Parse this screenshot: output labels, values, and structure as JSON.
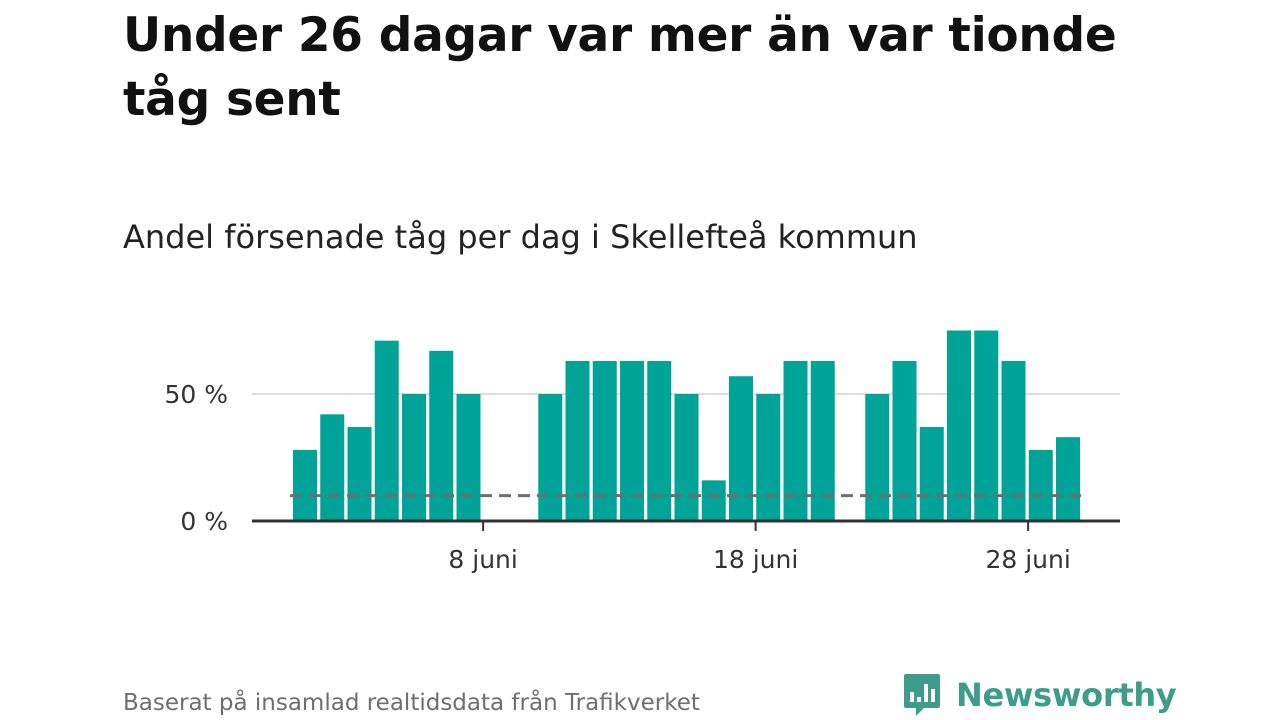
{
  "headline": "Under 26 dagar var mer än var tionde tåg sent",
  "subtitle": "Andel försenade tåg per dag i Skellefteå kommun",
  "footer": {
    "source": "Baserat på insamlad realtidsdata från Trafikverket",
    "brand": "Newsworthy"
  },
  "colors": {
    "bar": "#00a398",
    "reference_line": "#6e6e6e",
    "gridline": "#dddddd",
    "axis": "#333333",
    "brand": "#3d9c8a"
  },
  "chart_data": {
    "type": "bar",
    "title": "Andel försenade tåg per dag i Skellefteå kommun",
    "xlabel": "",
    "ylabel": "",
    "x_unit": "day of June",
    "x": [
      1,
      2,
      3,
      4,
      5,
      6,
      7,
      8,
      9,
      10,
      11,
      12,
      13,
      14,
      15,
      16,
      17,
      18,
      19,
      20,
      21,
      22,
      23,
      24,
      25,
      26,
      27,
      28,
      29,
      30
    ],
    "values": [
      28,
      42,
      37,
      71,
      50,
      67,
      50,
      null,
      null,
      50,
      63,
      63,
      63,
      63,
      50,
      16,
      57,
      50,
      63,
      63,
      null,
      50,
      63,
      37,
      75,
      75,
      63,
      28,
      33,
      null
    ],
    "reference_line": {
      "value": 10,
      "style": "dashed",
      "label": ""
    },
    "ylim": [
      0,
      80
    ],
    "y_ticks": [
      {
        "value": 0,
        "label": "0 %"
      },
      {
        "value": 50,
        "label": "50 %"
      }
    ],
    "x_ticks": [
      {
        "value": 8,
        "label": "8 juni"
      },
      {
        "value": 18,
        "label": "18 juni"
      },
      {
        "value": 28,
        "label": "28 juni"
      }
    ],
    "grid": true
  }
}
